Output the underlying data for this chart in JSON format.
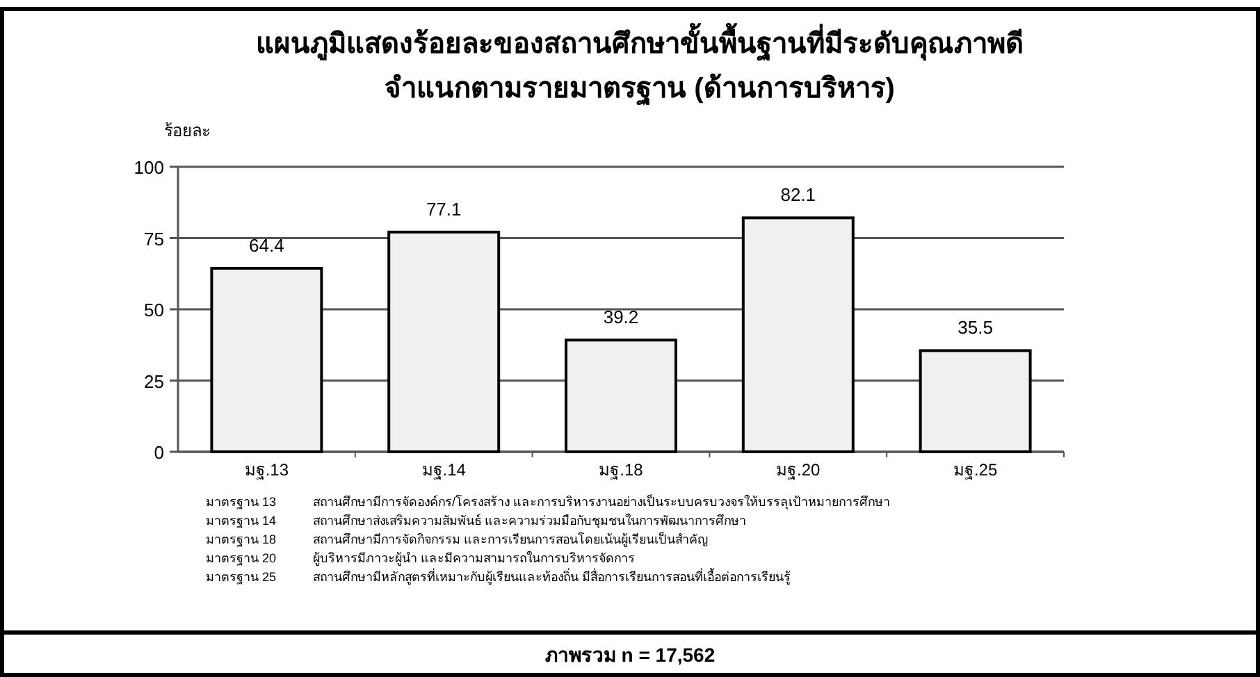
{
  "chart_data": {
    "type": "bar",
    "title": "แผนภูมิแสดงร้อยละของสถานศึกษาขั้นพื้นฐานที่มีระดับคุณภาพดี",
    "subtitle": "จำแนกตามรายมาตรฐาน (ด้านการบริหาร)",
    "ylabel": "ร้อยละ",
    "categories": [
      "มฐ.13",
      "มฐ.14",
      "มฐ.18",
      "มฐ.20",
      "มฐ.25"
    ],
    "values": [
      64.4,
      77.1,
      39.2,
      82.1,
      35.5
    ],
    "color": "#f0f0f0",
    "ylim": [
      0,
      100
    ],
    "yticks": [
      0,
      25,
      50,
      75,
      100
    ],
    "grid": "y",
    "data_labels": true,
    "annotations": [
      "มาตรฐาน 13   สถานศึกษามีการจัดองค์กร/โครงสร้าง และการบริหารงานอย่างเป็นระบบครบวงจรให้บรรลุเป้าหมายการศึกษา",
      "มาตรฐาน 14   สถานศึกษาส่งเสริมความสัมพันธ์ และความร่วมมือกับชุมชนในการพัฒนาการศึกษา",
      "มาตรฐาน 18   สถานศึกษามีการจัดกิจกรรม และการเรียนการสอนโดยเน้นผู้เรียนเป็นสำคัญ",
      "มาตรฐาน 20   ผู้บริหารมีภาวะผู้นำ และมีความสามารถในการบริหารจัดการ",
      "มาตรฐาน 25   สถานศึกษามีหลักสูตรที่เหมาะกับผู้เรียนและท้องถิ่น มีสื่อการเรียนการสอนที่เอื้อต่อการเรียนรู้",
      "ภาพรวม n = 17,562"
    ]
  }
}
